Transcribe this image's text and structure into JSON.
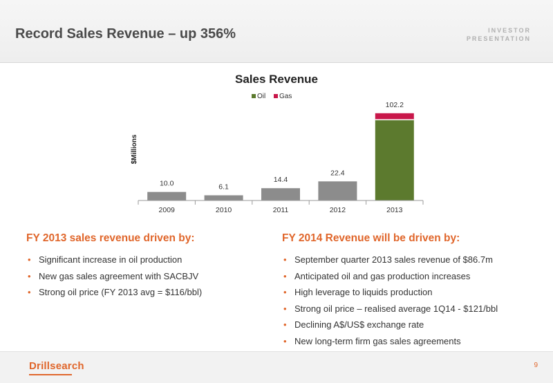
{
  "header": {
    "title": "Record Sales Revenue – up 356%",
    "badge_line1": "INVESTOR",
    "badge_line2": "PRESENTATION"
  },
  "chart_data": {
    "type": "bar",
    "title": "Sales Revenue",
    "ylabel": "$Millions",
    "xlabel": "",
    "categories": [
      "2009",
      "2010",
      "2011",
      "2012",
      "2013"
    ],
    "series": [
      {
        "name": "Oil",
        "values": [
          null,
          null,
          null,
          null,
          94.4
        ]
      },
      {
        "name": "Gas",
        "values": [
          null,
          null,
          null,
          null,
          7.8
        ]
      }
    ],
    "totals": [
      10.0,
      6.1,
      14.4,
      22.4,
      102.2
    ],
    "total_labels": [
      "10.0",
      "6.1",
      "14.4",
      "22.4",
      "102.2"
    ],
    "legend": [
      "Oil",
      "Gas"
    ],
    "legend_position": "top-right",
    "ylim": [
      0,
      110
    ],
    "grid": false,
    "colors": {
      "total": "#8c8c8c",
      "oil": "#5c7a2e",
      "gas": "#c8174a"
    }
  },
  "left_column": {
    "heading": "FY 2013 sales revenue driven by:",
    "items": [
      "Significant increase in oil production",
      "New gas sales agreement with SACBJV",
      "Strong oil price (FY 2013 avg = $116/bbl)"
    ]
  },
  "right_column": {
    "heading": "FY 2014 Revenue will be driven by:",
    "items": [
      "September quarter 2013 sales revenue of $86.7m",
      "Anticipated oil and gas production increases",
      "High leverage to liquids production",
      "Strong oil price – realised average 1Q14 - $121/bbl",
      "Declining A$/US$ exchange rate",
      "New long-term firm gas sales agreements"
    ]
  },
  "bullet_glyph": "•",
  "footer": {
    "logo_text": "Drillsearch",
    "page_number": "9"
  },
  "colors": {
    "accent": "#e0662b"
  }
}
